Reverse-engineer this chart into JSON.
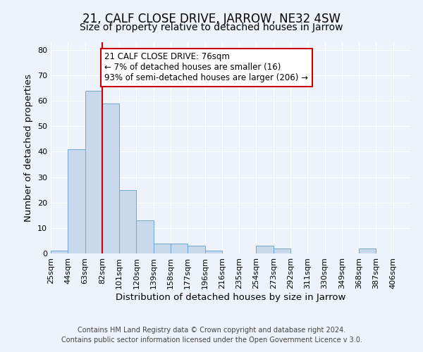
{
  "title": "21, CALF CLOSE DRIVE, JARROW, NE32 4SW",
  "subtitle": "Size of property relative to detached houses in Jarrow",
  "xlabel": "Distribution of detached houses by size in Jarrow",
  "ylabel": "Number of detached properties",
  "bin_labels": [
    "25sqm",
    "44sqm",
    "63sqm",
    "82sqm",
    "101sqm",
    "120sqm",
    "139sqm",
    "158sqm",
    "177sqm",
    "196sqm",
    "216sqm",
    "235sqm",
    "254sqm",
    "273sqm",
    "292sqm",
    "311sqm",
    "330sqm",
    "349sqm",
    "368sqm",
    "387sqm",
    "406sqm"
  ],
  "bar_values": [
    1,
    41,
    64,
    59,
    25,
    13,
    4,
    4,
    3,
    1,
    0,
    0,
    3,
    2,
    0,
    0,
    0,
    0,
    2,
    0,
    0
  ],
  "bar_color": "#c9d9ed",
  "bar_edge_color": "#6fa8d0",
  "ylim": [
    0,
    83
  ],
  "yticks": [
    0,
    10,
    20,
    30,
    40,
    50,
    60,
    70,
    80
  ],
  "redline_index": 3,
  "annotation_title": "21 CALF CLOSE DRIVE: 76sqm",
  "annotation_line1": "← 7% of detached houses are smaller (16)",
  "annotation_line2": "93% of semi-detached houses are larger (206) →",
  "annotation_box_facecolor": "#ffffff",
  "annotation_box_edgecolor": "#cc0000",
  "footer1": "Contains HM Land Registry data © Crown copyright and database right 2024.",
  "footer2": "Contains public sector information licensed under the Open Government Licence v 3.0.",
  "background_color": "#eef2fa",
  "grid_color": "#ffffff",
  "title_fontsize": 12,
  "subtitle_fontsize": 10,
  "axis_label_fontsize": 9.5,
  "tick_fontsize": 8,
  "annotation_fontsize": 8.5,
  "footer_fontsize": 7
}
